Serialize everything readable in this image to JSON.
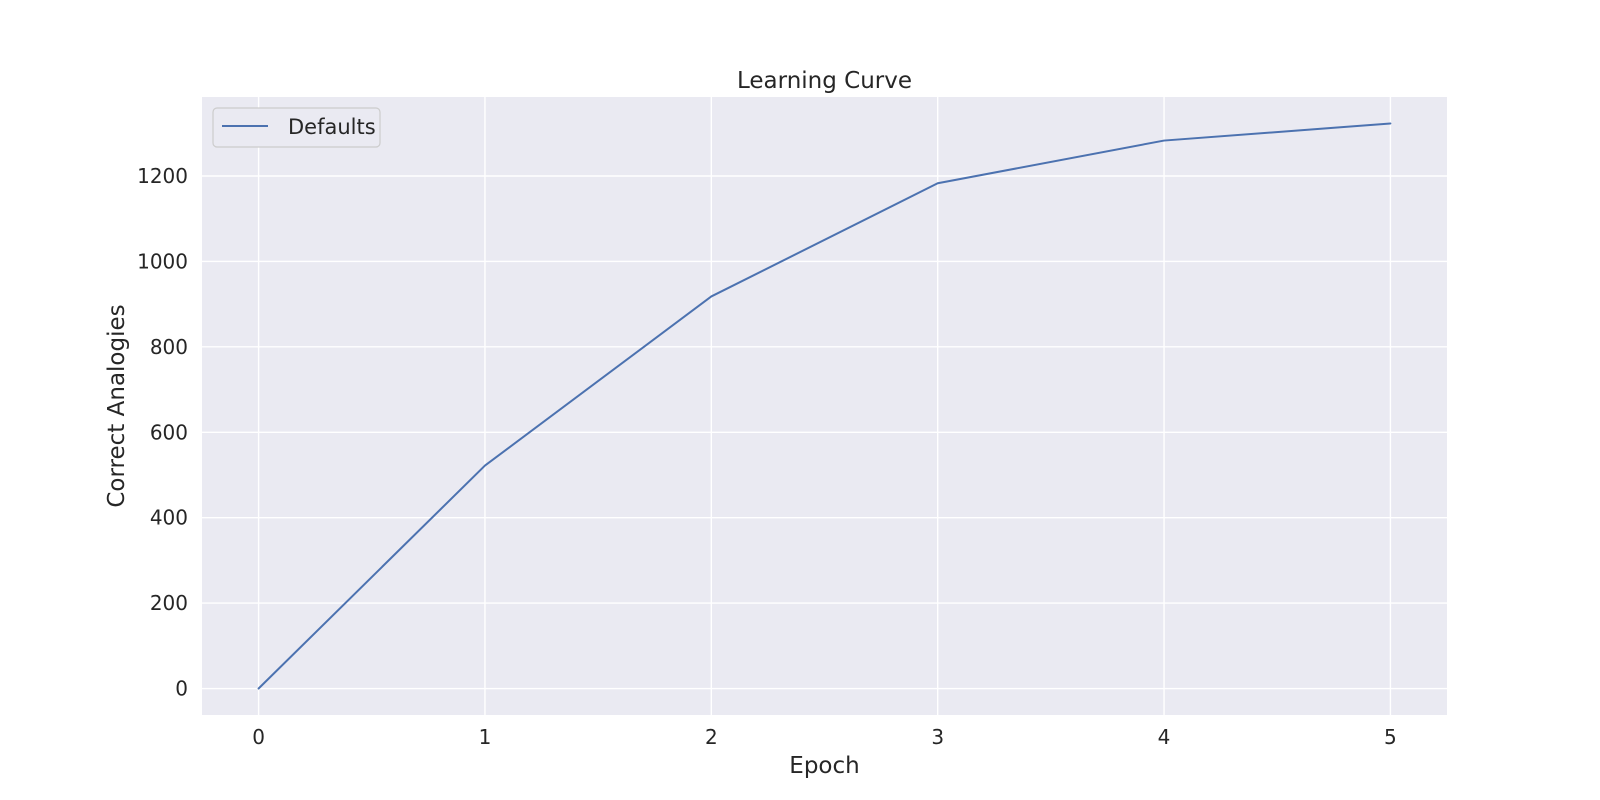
{
  "chart_data": {
    "type": "line",
    "title": "Learning Curve",
    "xlabel": "Epoch",
    "ylabel": "Correct Analogies",
    "x": [
      0,
      1,
      2,
      3,
      4,
      5
    ],
    "series": [
      {
        "name": "Defaults",
        "color": "#4c72b0",
        "values": [
          0,
          522,
          918,
          1183,
          1283,
          1323
        ]
      }
    ],
    "xlim": [
      -0.25,
      5.25
    ],
    "ylim": [
      -62,
      1385
    ],
    "x_ticks": [
      "0",
      "1",
      "2",
      "3",
      "4",
      "5"
    ],
    "y_ticks": [
      "0",
      "200",
      "400",
      "600",
      "800",
      "1000",
      "1200"
    ],
    "grid": true,
    "legend_position": "upper-left",
    "style": {
      "plot_background": "#eaeaf2",
      "grid_color": "#ffffff"
    }
  }
}
